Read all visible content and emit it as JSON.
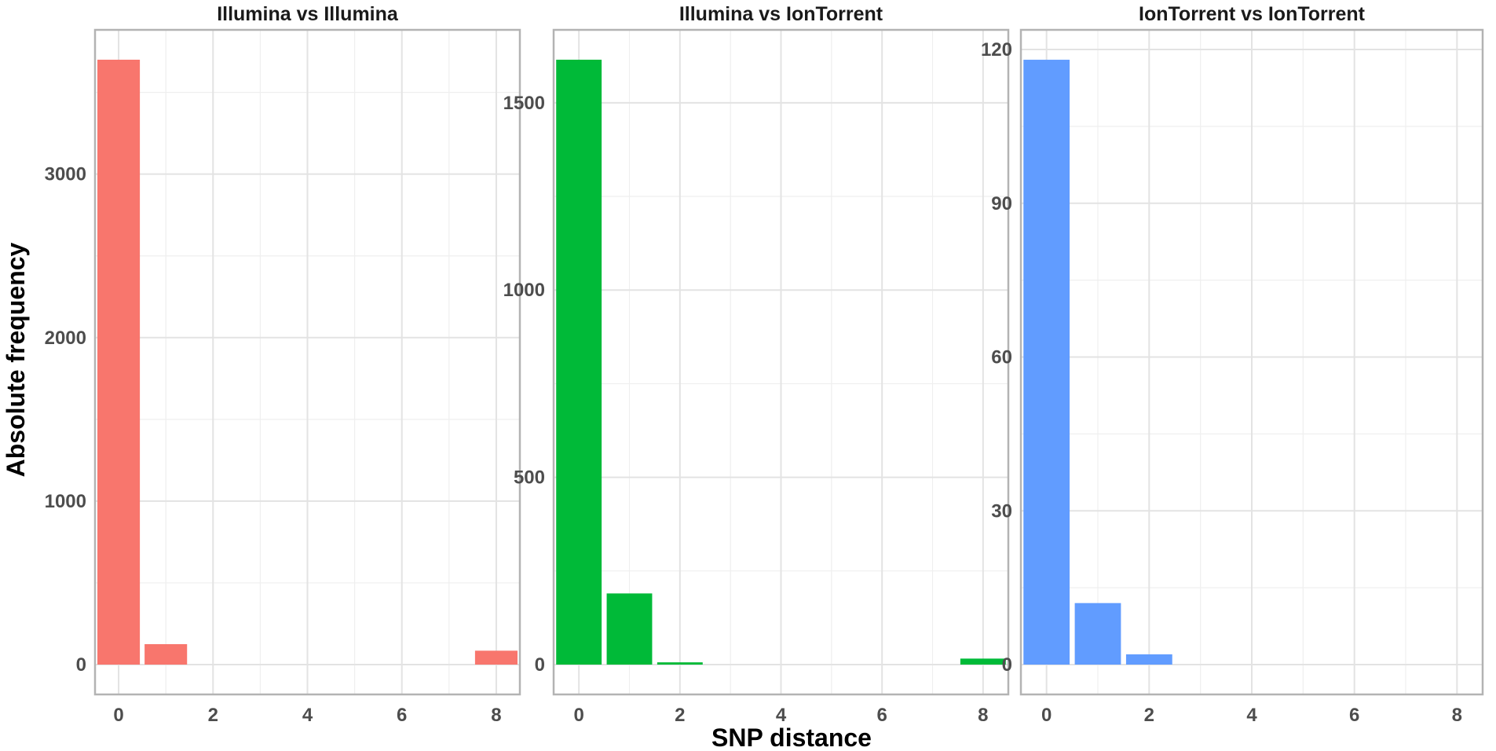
{
  "figure": {
    "xlabel": "SNP distance",
    "ylabel": "Absolute frequency"
  },
  "chart_data": [
    {
      "type": "bar",
      "title": "Illumina vs Illumina",
      "color": "#F8766D",
      "x": [
        0,
        1,
        8
      ],
      "values": [
        3700,
        125,
        85
      ],
      "xlim": [
        -0.5,
        8.5
      ],
      "ylim": [
        0,
        3700
      ],
      "xticks": [
        0,
        2,
        4,
        6,
        8
      ],
      "yticks": [
        0,
        1000,
        2000,
        3000
      ],
      "grid": true
    },
    {
      "type": "bar",
      "title": "Illumina vs IonTorrent",
      "color": "#00BA38",
      "x": [
        0,
        1,
        2,
        8
      ],
      "values": [
        1615,
        190,
        6,
        16
      ],
      "xlim": [
        -0.5,
        8.5
      ],
      "ylim": [
        0,
        1615
      ],
      "xticks": [
        0,
        2,
        4,
        6,
        8
      ],
      "yticks": [
        0,
        500,
        1000,
        1500
      ],
      "grid": true
    },
    {
      "type": "bar",
      "title": "IonTorrent vs IonTorrent",
      "color": "#619CFF",
      "x": [
        0,
        1,
        2
      ],
      "values": [
        118,
        12,
        2
      ],
      "xlim": [
        -0.5,
        8.5
      ],
      "ylim": [
        0,
        120
      ],
      "xticks": [
        0,
        2,
        4,
        6,
        8
      ],
      "yticks": [
        0,
        30,
        60,
        90,
        120
      ],
      "grid": true
    }
  ]
}
